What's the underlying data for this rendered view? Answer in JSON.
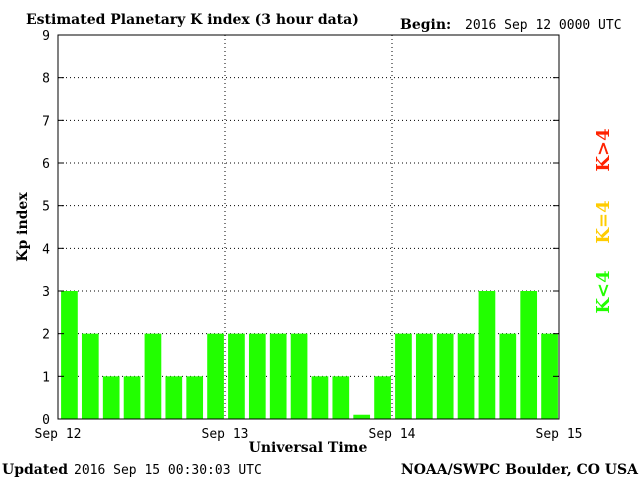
{
  "chart_data": {
    "type": "bar",
    "title": "Estimated Planetary K index (3 hour data)",
    "begin_label": "Begin:",
    "begin_value": "2016 Sep 12 0000 UTC",
    "xlabel": "Universal Time",
    "ylabel": "Kp index",
    "ylim": [
      0,
      9
    ],
    "yticks": [
      "0",
      "1",
      "2",
      "3",
      "4",
      "5",
      "6",
      "7",
      "8",
      "9"
    ],
    "xticks": [
      "Sep 12",
      "Sep 13",
      "Sep 14",
      "Sep 15"
    ],
    "values": [
      3,
      2,
      1,
      1,
      2,
      1,
      1,
      2,
      2,
      2,
      2,
      2,
      1,
      1,
      0.1,
      1,
      2,
      2,
      2,
      2,
      3,
      2,
      3,
      2
    ],
    "bar_color": "#22ff00",
    "grid": "dotted vertical at day boundaries, dotted horizontal at each integer",
    "legend": [
      {
        "text": "K<4",
        "color": "#22ff00"
      },
      {
        "text": "K=4",
        "color": "#ffcc00"
      },
      {
        "text": "K>4",
        "color": "#ff2200"
      }
    ]
  },
  "footer": {
    "updated_label": "Updated",
    "updated_value": "2016 Sep 15 00:30:03 UTC",
    "source": "NOAA/SWPC Boulder, CO USA"
  }
}
